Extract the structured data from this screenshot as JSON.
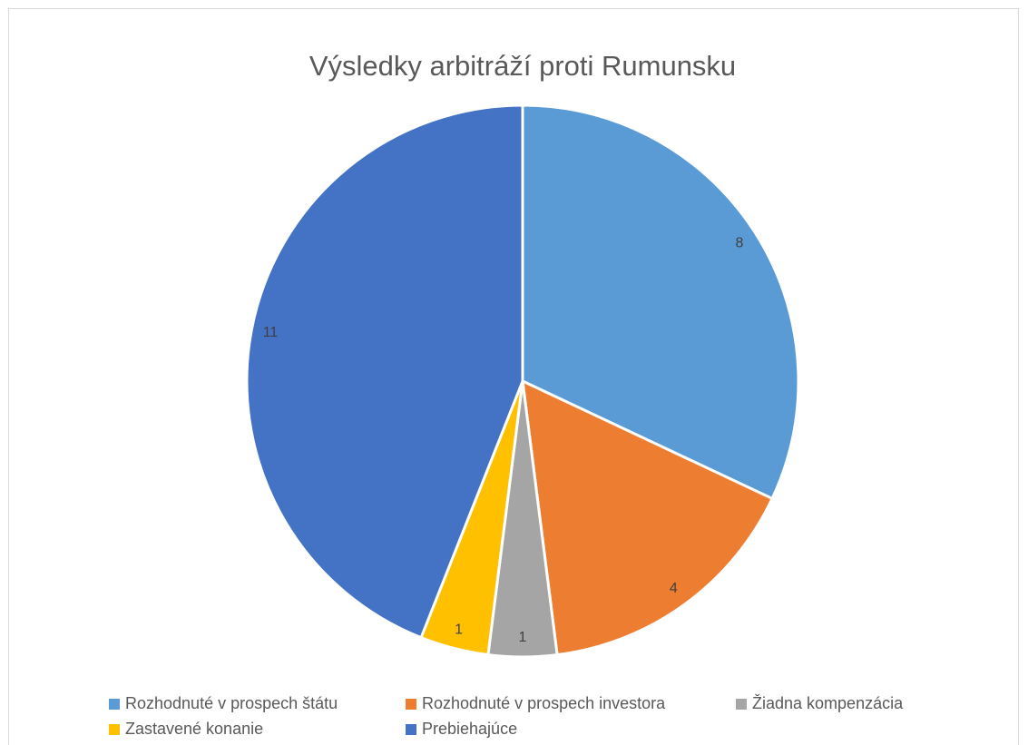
{
  "chart_data": {
    "type": "pie",
    "title": "Výsledky arbitráží proti Rumunsku",
    "categories": [
      "Rozhodnuté v prospech štátu",
      "Rozhodnuté v prospech investora",
      "Žiadna kompenzácia",
      "Zastavené konanie",
      "Prebiehajúce"
    ],
    "values": [
      8,
      4,
      1,
      1,
      11
    ],
    "colors": [
      "#5b9bd5",
      "#ed7d31",
      "#a5a5a5",
      "#ffc000",
      "#4472c4"
    ],
    "legend": "bottom"
  }
}
